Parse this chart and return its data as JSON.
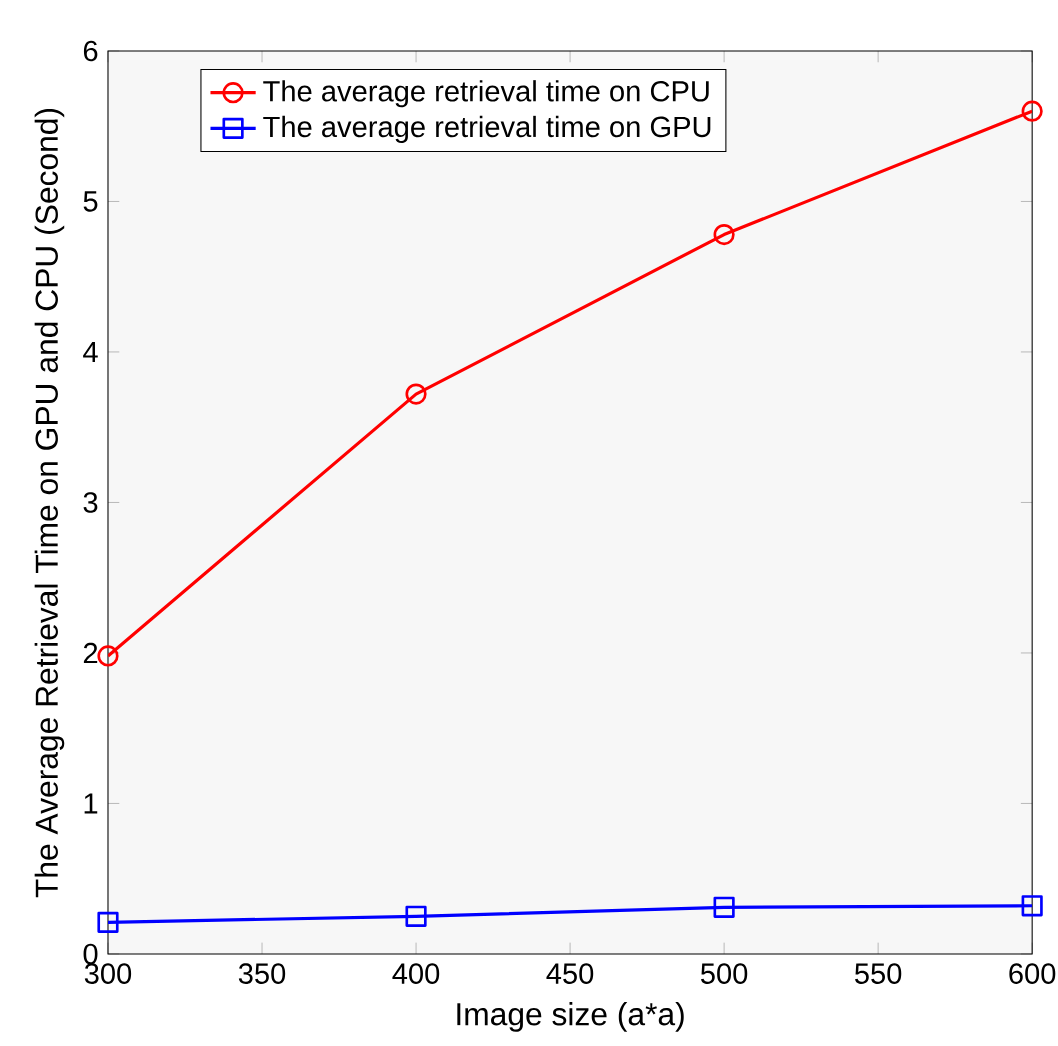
{
  "chart_data": {
    "type": "line",
    "xlabel": "Image size (a*a)",
    "ylabel": "The Average Retrieval Time on GPU and CPU (Second)",
    "x": [
      300,
      400,
      500,
      600
    ],
    "series": [
      {
        "name": "The average retrieval time on CPU",
        "color": "#ff0000",
        "marker": "circle",
        "values": [
          1.98,
          3.72,
          4.78,
          5.6
        ]
      },
      {
        "name": "The average retrieval time on GPU",
        "color": "#0000ff",
        "marker": "square",
        "values": [
          0.21,
          0.25,
          0.31,
          0.32
        ]
      }
    ],
    "xlim": [
      300,
      600
    ],
    "ylim": [
      0,
      6
    ],
    "xticks": [
      300,
      350,
      400,
      450,
      500,
      550,
      600
    ],
    "yticks": [
      0,
      1,
      2,
      3,
      4,
      5,
      6
    ],
    "grid": false,
    "legend": "top left",
    "line_style": "solid"
  }
}
